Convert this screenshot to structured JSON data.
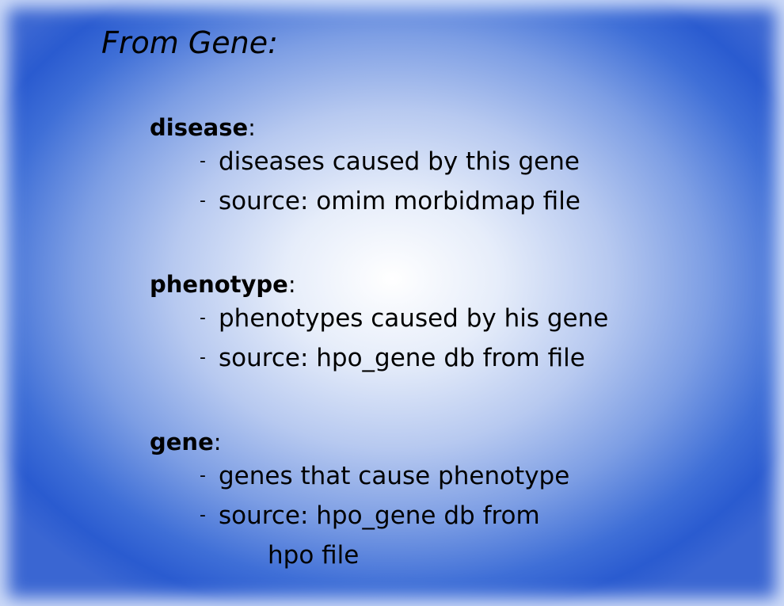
{
  "title": "From Gene:",
  "sections": [
    {
      "keyword": "disease",
      "suffix": ":",
      "items": [
        {
          "dash": "-",
          "text": "diseases caused by this gene"
        },
        {
          "dash": "-",
          "text": "source: omim morbidmap file"
        }
      ]
    },
    {
      "keyword": "phenotype",
      "suffix": ":",
      "items": [
        {
          "dash": "-",
          "text": "phenotypes caused by his gene"
        },
        {
          "dash": "-",
          "text": "source: hpo_gene db from file"
        }
      ]
    },
    {
      "keyword": "gene",
      "suffix": ":",
      "items": [
        {
          "dash": "-",
          "text": "genes that cause phenotype"
        },
        {
          "dash": "-",
          "text": "source: hpo_gene db from",
          "continuation": "hpo file"
        }
      ]
    }
  ]
}
